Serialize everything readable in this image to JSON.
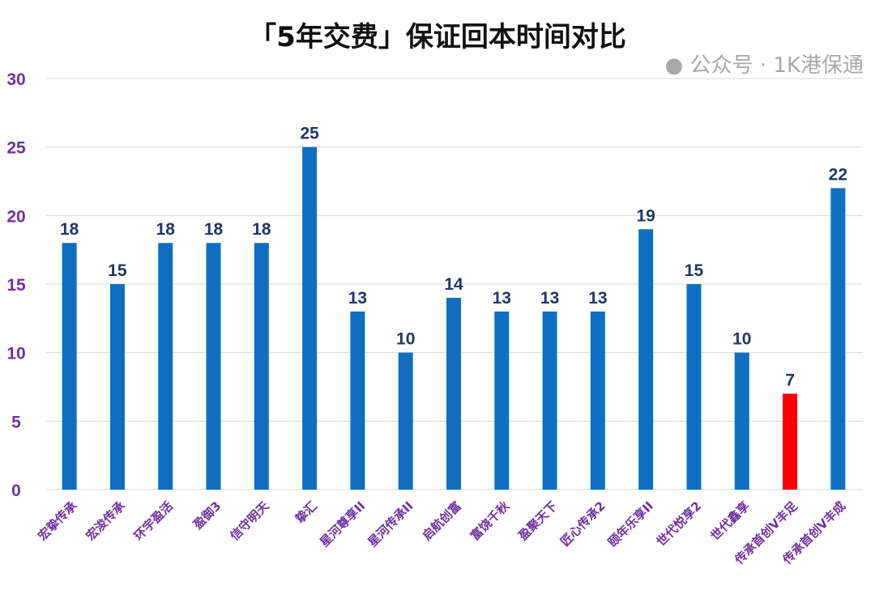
{
  "chart_data": {
    "type": "bar",
    "title": "「5年交费」保证回本时间对比",
    "xlabel": "",
    "ylabel": "",
    "ylim": [
      0,
      30
    ],
    "yticks": [
      0,
      5,
      10,
      15,
      20,
      25,
      30
    ],
    "grid": true,
    "categories": [
      "宏挚传承",
      "宏浚传承",
      "环宇盈活",
      "盈御3",
      "信守明天",
      "挚汇",
      "星河尊享II",
      "星河传承II",
      "启航创富",
      "富饶千秋",
      "盈聚天下",
      "匠心传承2",
      "颐年乐享II",
      "世代悦享2",
      "世代鑫享",
      "传承首创V丰足",
      "传承首创V丰成"
    ],
    "values": [
      18,
      15,
      18,
      18,
      18,
      25,
      13,
      10,
      14,
      13,
      13,
      13,
      19,
      15,
      10,
      7,
      22
    ],
    "highlight_index": 15,
    "colors": {
      "bar": "#0e6fc0",
      "highlight": "#ff0000",
      "value_label": "#1f3864",
      "axis_label": "#7030a0",
      "grid": "#d9d9d9"
    }
  },
  "watermark": "公众号 · 1K港保通"
}
